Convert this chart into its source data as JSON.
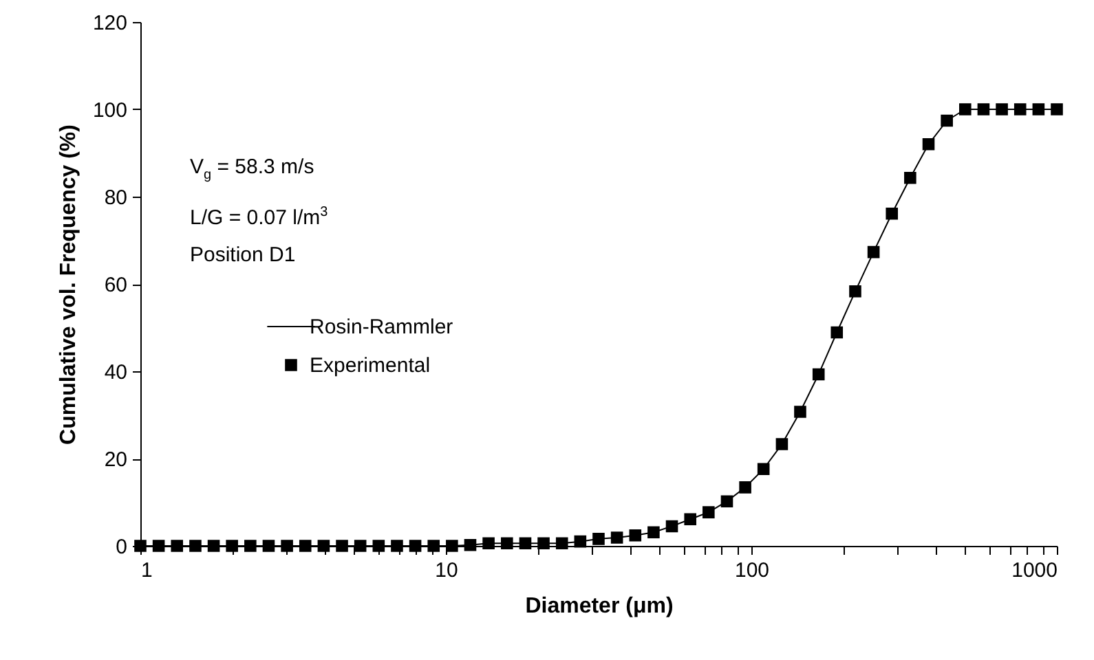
{
  "chart_data": {
    "type": "scatter",
    "xlabel": "Diameter (μm)",
    "ylabel": "Cumulative vol. Frequency (%)",
    "x": [
      1,
      1.148,
      1.318,
      1.514,
      1.738,
      1.995,
      2.291,
      2.63,
      3.02,
      3.467,
      3.981,
      4.571,
      5.248,
      6.026,
      6.918,
      7.943,
      9.12,
      10.47,
      12.02,
      13.8,
      15.85,
      18.2,
      20.89,
      23.99,
      27.54,
      31.62,
      36.31,
      41.69,
      47.86,
      54.95,
      63.1,
      72.44,
      83.18,
      95.5,
      109.6,
      125.9,
      144.5,
      166,
      190.5,
      218.8,
      251.2,
      288.4,
      331.1,
      380.2,
      436.5,
      501.2,
      575.4,
      660.7,
      758.6,
      871,
      1000
    ],
    "series": [
      {
        "name": "Rosin-Rammler",
        "type": "line",
        "color": "#000000",
        "marker": "none",
        "line_style": "solid",
        "values": [
          0,
          0,
          0,
          0,
          0,
          0,
          0,
          0,
          0,
          0,
          0,
          0,
          0,
          0,
          0,
          0,
          0,
          0,
          0.2,
          0.6,
          0.6,
          0.6,
          0.6,
          0.6,
          1.0,
          1.6,
          1.9,
          2.4,
          3.1,
          4.5,
          6.1,
          7.7,
          10.2,
          13.4,
          17.6,
          23.3,
          30.7,
          39.3,
          48.9,
          58.3,
          67.3,
          76.1,
          84.3,
          92.0,
          97.4,
          100,
          100,
          100,
          100,
          100,
          100
        ]
      },
      {
        "name": "Experimental",
        "color": "#000000",
        "marker": "square",
        "values": [
          0,
          0,
          0,
          0,
          0,
          0,
          0,
          0,
          0,
          0,
          0,
          0,
          0,
          0,
          0,
          0,
          0,
          0,
          0.2,
          0.6,
          0.6,
          0.6,
          0.6,
          0.6,
          1.0,
          1.6,
          1.9,
          2.4,
          3.1,
          4.5,
          6.1,
          7.7,
          10.2,
          13.4,
          17.6,
          23.3,
          30.7,
          39.3,
          48.9,
          58.3,
          67.3,
          76.1,
          84.3,
          92.0,
          97.4,
          100,
          100,
          100,
          100,
          100,
          100
        ]
      }
    ],
    "log": "x",
    "xlim": [
      1,
      1000
    ],
    "xticks": [
      1,
      {
        "value": 2,
        "label": null
      },
      {
        "value": 3,
        "label": null
      },
      {
        "value": 4,
        "label": null
      },
      {
        "value": 5,
        "label": null
      },
      {
        "value": 6,
        "label": null
      },
      {
        "value": 7,
        "label": null
      },
      {
        "value": 8,
        "label": null
      },
      {
        "value": 9,
        "label": null
      },
      10,
      {
        "value": 20,
        "label": null
      },
      {
        "value": 30,
        "label": null
      },
      {
        "value": 40,
        "label": null
      },
      {
        "value": 50,
        "label": null
      },
      {
        "value": 60,
        "label": null
      },
      {
        "value": 70,
        "label": null
      },
      {
        "value": 80,
        "label": null
      },
      {
        "value": 90,
        "label": null
      },
      100,
      {
        "value": 200,
        "label": null
      },
      {
        "value": 300,
        "label": null
      },
      {
        "value": 400,
        "label": null
      },
      {
        "value": 500,
        "label": null
      },
      {
        "value": 600,
        "label": null
      },
      {
        "value": 700,
        "label": null
      },
      {
        "value": 800,
        "label": null
      },
      {
        "value": 900,
        "label": null
      },
      1000
    ],
    "ylim": [
      0,
      120
    ],
    "yticks": [
      0,
      20,
      40,
      60,
      80,
      100,
      120
    ],
    "grid": false,
    "legend": "left",
    "annotations": [
      "V$_{g}$ = 58.3 m/s",
      "L/G = 0.07 l/m$^{3}$",
      "Position D1"
    ]
  }
}
